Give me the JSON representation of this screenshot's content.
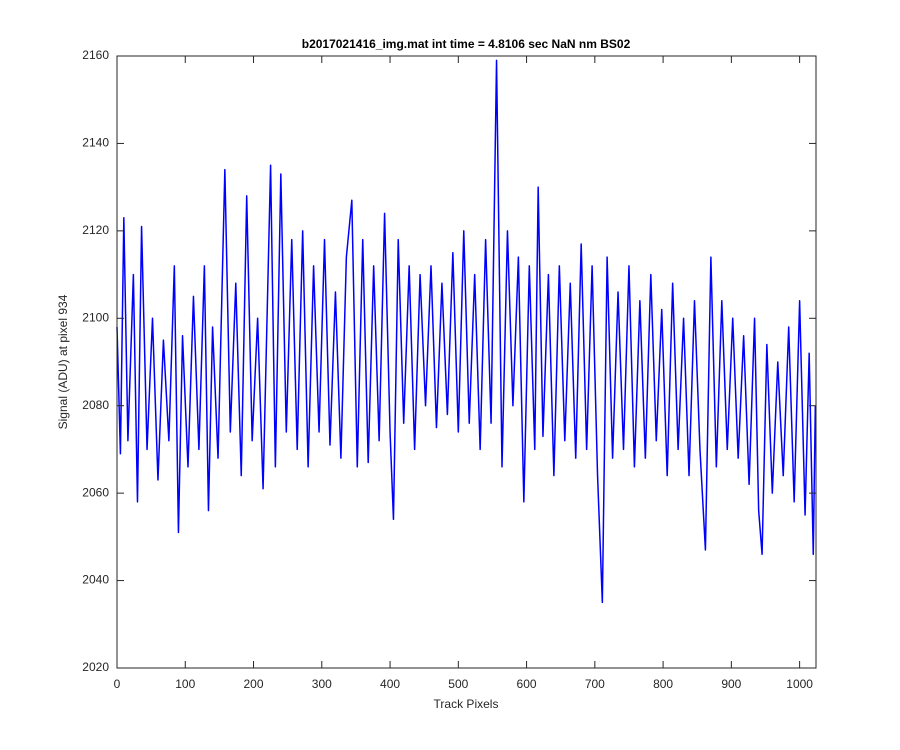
{
  "chart_data": {
    "type": "line",
    "title": "b2017021416_img.mat int time = 4.8106 sec  NaN nm BS02",
    "xlabel": "Track Pixels",
    "ylabel": "Signal (ADU) at pixel 934",
    "color": "#0000ff",
    "x": [
      0,
      5,
      10,
      16,
      24,
      30,
      36,
      44,
      52,
      60,
      68,
      76,
      84,
      90,
      96,
      104,
      112,
      120,
      128,
      134,
      140,
      148,
      158,
      166,
      174,
      182,
      190,
      198,
      206,
      214,
      225,
      232,
      240,
      248,
      256,
      264,
      272,
      280,
      288,
      296,
      304,
      312,
      320,
      328,
      336,
      344,
      352,
      360,
      368,
      376,
      384,
      392,
      400,
      405,
      412,
      420,
      428,
      436,
      444,
      452,
      460,
      468,
      476,
      484,
      492,
      500,
      508,
      516,
      524,
      532,
      540,
      548,
      556,
      564,
      572,
      580,
      588,
      596,
      604,
      612,
      617,
      624,
      632,
      640,
      648,
      656,
      664,
      672,
      680,
      688,
      696,
      704,
      711,
      718,
      726,
      734,
      742,
      750,
      758,
      766,
      774,
      782,
      790,
      798,
      806,
      814,
      822,
      830,
      838,
      846,
      854,
      862,
      870,
      878,
      886,
      894,
      902,
      910,
      918,
      926,
      934,
      940,
      945,
      952,
      960,
      968,
      976,
      984,
      992,
      1000,
      1008,
      1014,
      1020,
      1023
    ],
    "values": [
      2098,
      2069,
      2123,
      2072,
      2110,
      2058,
      2121,
      2070,
      2100,
      2063,
      2095,
      2072,
      2112,
      2051,
      2096,
      2066,
      2105,
      2070,
      2112,
      2056,
      2098,
      2068,
      2134,
      2074,
      2108,
      2064,
      2128,
      2072,
      2100,
      2061,
      2135,
      2066,
      2133,
      2074,
      2118,
      2070,
      2120,
      2066,
      2112,
      2074,
      2118,
      2071,
      2106,
      2068,
      2114,
      2127,
      2066,
      2118,
      2067,
      2112,
      2072,
      2124,
      2074,
      2054,
      2118,
      2076,
      2112,
      2070,
      2110,
      2080,
      2112,
      2075,
      2108,
      2078,
      2115,
      2074,
      2120,
      2076,
      2110,
      2070,
      2118,
      2076,
      2159,
      2066,
      2120,
      2080,
      2114,
      2058,
      2112,
      2070,
      2130,
      2073,
      2110,
      2064,
      2112,
      2072,
      2108,
      2068,
      2117,
      2070,
      2112,
      2064,
      2035,
      2114,
      2068,
      2106,
      2070,
      2112,
      2066,
      2104,
      2068,
      2110,
      2072,
      2102,
      2064,
      2108,
      2070,
      2100,
      2064,
      2104,
      2070,
      2047,
      2114,
      2066,
      2104,
      2070,
      2100,
      2068,
      2096,
      2062,
      2100,
      2056,
      2046,
      2094,
      2060,
      2090,
      2064,
      2098,
      2058,
      2104,
      2055,
      2092,
      2046,
      2080
    ],
    "xlim": [
      0,
      1024
    ],
    "ylim": [
      2020,
      2160
    ],
    "xticks": [
      0,
      100,
      200,
      300,
      400,
      500,
      600,
      700,
      800,
      900,
      1000
    ],
    "yticks": [
      2020,
      2040,
      2060,
      2080,
      2100,
      2120,
      2140,
      2160
    ]
  }
}
